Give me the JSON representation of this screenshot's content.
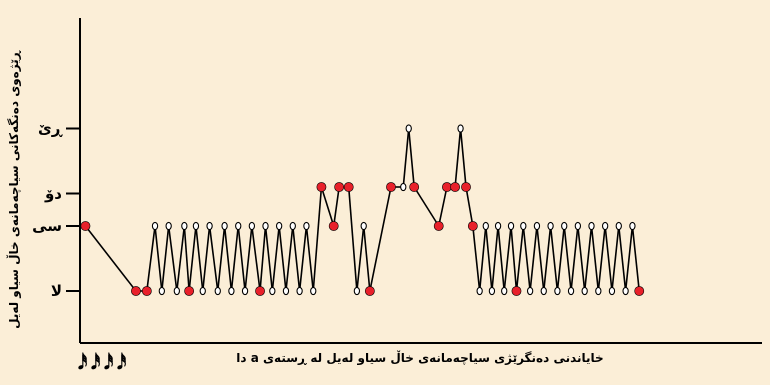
{
  "chart_data": {
    "type": "line",
    "ylabel": "ڕێژەوی دەنگەکانی سیاچەمانەی خاڵ سیاو لەیل",
    "xlabel": "خایاندنی دەنگرێژی سیاچەمانەی خاڵ سیاو لەیل لە ڕستەی a دا",
    "y_ticks": [
      {
        "value": 0,
        "label": "لا"
      },
      {
        "value": 1,
        "label": "سی"
      },
      {
        "value": 1.5,
        "label": "دۆ"
      },
      {
        "value": 2.5,
        "label": "ڕێ"
      }
    ],
    "ylim": [
      -0.8,
      4.2
    ],
    "xlim": [
      0,
      100
    ],
    "x_tick_glyphs": [
      "𝅘𝅥𝅰",
      "𝅘𝅥𝅰",
      "𝅘𝅥𝅰",
      "𝅘𝅥𝅰"
    ],
    "grid": false,
    "points": [
      {
        "x": 0.8,
        "y": 1,
        "m": "red"
      },
      {
        "x": 8.2,
        "y": 0,
        "m": "red"
      },
      {
        "x": 9.8,
        "y": 0,
        "m": "red"
      },
      {
        "x": 11.0,
        "y": 1,
        "m": "open"
      },
      {
        "x": 12.0,
        "y": 0,
        "m": "open"
      },
      {
        "x": 13.0,
        "y": 1,
        "m": "open"
      },
      {
        "x": 14.2,
        "y": 0,
        "m": "open"
      },
      {
        "x": 15.3,
        "y": 1,
        "m": "open"
      },
      {
        "x": 16.0,
        "y": 0,
        "m": "red"
      },
      {
        "x": 17.0,
        "y": 1,
        "m": "open"
      },
      {
        "x": 18.0,
        "y": 0,
        "m": "open"
      },
      {
        "x": 19.0,
        "y": 1,
        "m": "open"
      },
      {
        "x": 20.2,
        "y": 0,
        "m": "open"
      },
      {
        "x": 21.2,
        "y": 1,
        "m": "open"
      },
      {
        "x": 22.2,
        "y": 0,
        "m": "open"
      },
      {
        "x": 23.2,
        "y": 1,
        "m": "open"
      },
      {
        "x": 24.2,
        "y": 0,
        "m": "open"
      },
      {
        "x": 25.2,
        "y": 1,
        "m": "open"
      },
      {
        "x": 26.4,
        "y": 0,
        "m": "red"
      },
      {
        "x": 27.2,
        "y": 1,
        "m": "open"
      },
      {
        "x": 28.2,
        "y": 0,
        "m": "open"
      },
      {
        "x": 29.2,
        "y": 1,
        "m": "open"
      },
      {
        "x": 30.2,
        "y": 0,
        "m": "open"
      },
      {
        "x": 31.2,
        "y": 1,
        "m": "open"
      },
      {
        "x": 32.2,
        "y": 0,
        "m": "open"
      },
      {
        "x": 33.2,
        "y": 1,
        "m": "open"
      },
      {
        "x": 34.2,
        "y": 0,
        "m": "open"
      },
      {
        "x": 35.4,
        "y": 1.6,
        "m": "red"
      },
      {
        "x": 37.2,
        "y": 1.0,
        "m": "red"
      },
      {
        "x": 38.0,
        "y": 1.6,
        "m": "red"
      },
      {
        "x": 39.4,
        "y": 1.6,
        "m": "red"
      },
      {
        "x": 40.6,
        "y": 0,
        "m": "open"
      },
      {
        "x": 41.6,
        "y": 1,
        "m": "open"
      },
      {
        "x": 42.5,
        "y": 0,
        "m": "red"
      },
      {
        "x": 45.6,
        "y": 1.6,
        "m": "red"
      },
      {
        "x": 47.4,
        "y": 1.6,
        "m": "open"
      },
      {
        "x": 48.2,
        "y": 2.5,
        "m": "open"
      },
      {
        "x": 49.0,
        "y": 1.6,
        "m": "red"
      },
      {
        "x": 52.6,
        "y": 1.0,
        "m": "red"
      },
      {
        "x": 53.8,
        "y": 1.6,
        "m": "red"
      },
      {
        "x": 55.0,
        "y": 1.6,
        "m": "red"
      },
      {
        "x": 55.8,
        "y": 2.5,
        "m": "open"
      },
      {
        "x": 56.6,
        "y": 1.6,
        "m": "red"
      },
      {
        "x": 57.6,
        "y": 1.0,
        "m": "red"
      },
      {
        "x": 58.6,
        "y": 0,
        "m": "open"
      },
      {
        "x": 59.5,
        "y": 1,
        "m": "open"
      },
      {
        "x": 60.4,
        "y": 0,
        "m": "open"
      },
      {
        "x": 61.3,
        "y": 1,
        "m": "open"
      },
      {
        "x": 62.2,
        "y": 0,
        "m": "open"
      },
      {
        "x": 63.2,
        "y": 1,
        "m": "open"
      },
      {
        "x": 64.0,
        "y": 0,
        "m": "red"
      },
      {
        "x": 65.0,
        "y": 1,
        "m": "open"
      },
      {
        "x": 66.0,
        "y": 0,
        "m": "open"
      },
      {
        "x": 67.0,
        "y": 1,
        "m": "open"
      },
      {
        "x": 68.0,
        "y": 0,
        "m": "open"
      },
      {
        "x": 69.0,
        "y": 1,
        "m": "open"
      },
      {
        "x": 70.0,
        "y": 0,
        "m": "open"
      },
      {
        "x": 71.0,
        "y": 1,
        "m": "open"
      },
      {
        "x": 72.0,
        "y": 0,
        "m": "open"
      },
      {
        "x": 73.0,
        "y": 1,
        "m": "open"
      },
      {
        "x": 74.0,
        "y": 0,
        "m": "open"
      },
      {
        "x": 75.0,
        "y": 1,
        "m": "open"
      },
      {
        "x": 76.0,
        "y": 0,
        "m": "open"
      },
      {
        "x": 77.0,
        "y": 1,
        "m": "open"
      },
      {
        "x": 78.0,
        "y": 0,
        "m": "open"
      },
      {
        "x": 79.0,
        "y": 1,
        "m": "open"
      },
      {
        "x": 80.0,
        "y": 0,
        "m": "open"
      },
      {
        "x": 81.0,
        "y": 1,
        "m": "open"
      },
      {
        "x": 82.0,
        "y": 0,
        "m": "red"
      }
    ],
    "colors": {
      "background": "#fbeed7",
      "line": "#000000",
      "filled_marker": "#e8202a",
      "open_marker": "#ffffff"
    }
  }
}
